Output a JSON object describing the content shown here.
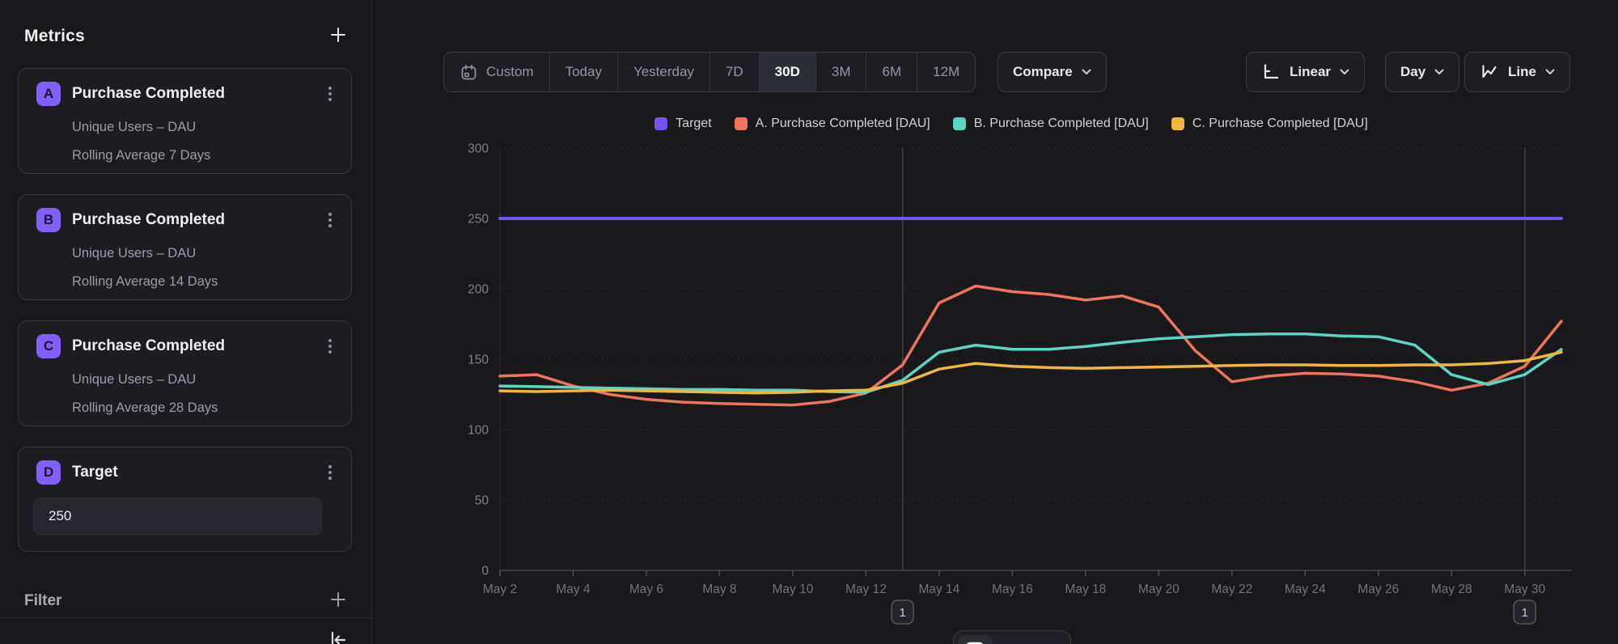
{
  "sidebar": {
    "metrics_title": "Metrics",
    "filter_title": "Filter",
    "metrics": [
      {
        "badge": "A",
        "title": "Purchase Completed",
        "subtitle": "Unique Users – DAU",
        "detail": "Rolling Average 7 Days"
      },
      {
        "badge": "B",
        "title": "Purchase Completed",
        "subtitle": "Unique Users – DAU",
        "detail": "Rolling Average 14 Days"
      },
      {
        "badge": "C",
        "title": "Purchase Completed",
        "subtitle": "Unique Users – DAU",
        "detail": "Rolling Average 28 Days"
      },
      {
        "badge": "D",
        "title": "Target",
        "input_value": "250"
      }
    ]
  },
  "toolbar": {
    "ranges": [
      "Custom",
      "Today",
      "Yesterday",
      "7D",
      "30D",
      "3M",
      "6M",
      "12M"
    ],
    "active_range": "30D",
    "compare_label": "Compare",
    "scale_label": "Linear",
    "granularity_label": "Day",
    "chart_type_label": "Line"
  },
  "colors": {
    "accent_purple": "#8160f8",
    "target_line": "#7452f5",
    "series_a": "#f0735b",
    "series_b": "#5cd6c3",
    "series_c": "#f0b73f",
    "grid": "#2d2d33",
    "axis": "#45454d"
  },
  "chart_data": {
    "type": "line",
    "x": [
      "May 2",
      "May 3",
      "May 4",
      "May 5",
      "May 6",
      "May 7",
      "May 8",
      "May 9",
      "May 10",
      "May 11",
      "May 12",
      "May 13",
      "May 14",
      "May 15",
      "May 16",
      "May 17",
      "May 18",
      "May 19",
      "May 20",
      "May 21",
      "May 22",
      "May 23",
      "May 24",
      "May 25",
      "May 26",
      "May 27",
      "May 28",
      "May 29",
      "May 30",
      "May 31"
    ],
    "x_tick_step": 2,
    "ylim": [
      0,
      300
    ],
    "yticks": [
      0,
      50,
      100,
      150,
      200,
      250,
      300
    ],
    "grid": "horizontal-dotted",
    "legend_position": "top-center",
    "series": [
      {
        "name": "Target",
        "color": "#7452f5",
        "values": [
          250,
          250,
          250,
          250,
          250,
          250,
          250,
          250,
          250,
          250,
          250,
          250,
          250,
          250,
          250,
          250,
          250,
          250,
          250,
          250,
          250,
          250,
          250,
          250,
          250,
          250,
          250,
          250,
          250,
          250
        ]
      },
      {
        "name": "A. Purchase Completed [DAU]",
        "color": "#f0735b",
        "values": [
          138,
          139,
          131,
          125,
          121.5,
          119.5,
          118.5,
          118,
          117.5,
          120,
          126,
          146,
          190,
          202,
          198,
          196,
          192,
          195,
          187,
          156,
          134,
          138,
          140,
          139.5,
          138,
          134,
          128,
          133,
          145,
          177
        ]
      },
      {
        "name": "B. Purchase Completed [DAU]",
        "color": "#5cd6c3",
        "values": [
          131,
          130.5,
          130,
          129.5,
          129,
          128.5,
          128.5,
          128,
          128,
          127,
          126.5,
          135,
          155,
          160,
          157,
          157,
          159,
          162,
          164.5,
          166,
          167.5,
          168,
          168,
          166.5,
          166,
          160,
          139,
          132,
          139,
          157
        ]
      },
      {
        "name": "C. Purchase Completed [DAU]",
        "color": "#f0b73f",
        "values": [
          127.5,
          127,
          127.5,
          128,
          127.5,
          127,
          126.5,
          126,
          126.5,
          127.5,
          128,
          133,
          143,
          147,
          145,
          144,
          143.5,
          144,
          144.5,
          145,
          145.5,
          146,
          146,
          145.5,
          145.5,
          146,
          146,
          147,
          149,
          155
        ]
      }
    ],
    "annotations": [
      {
        "x": "May 13",
        "badge": "1"
      },
      {
        "x": "May 30",
        "badge": "1"
      }
    ]
  },
  "bottom_toolbar": {
    "buttons": [
      "chart-size-large",
      "chart-size-medium",
      "chart-size-small"
    ],
    "active_index": 0
  }
}
